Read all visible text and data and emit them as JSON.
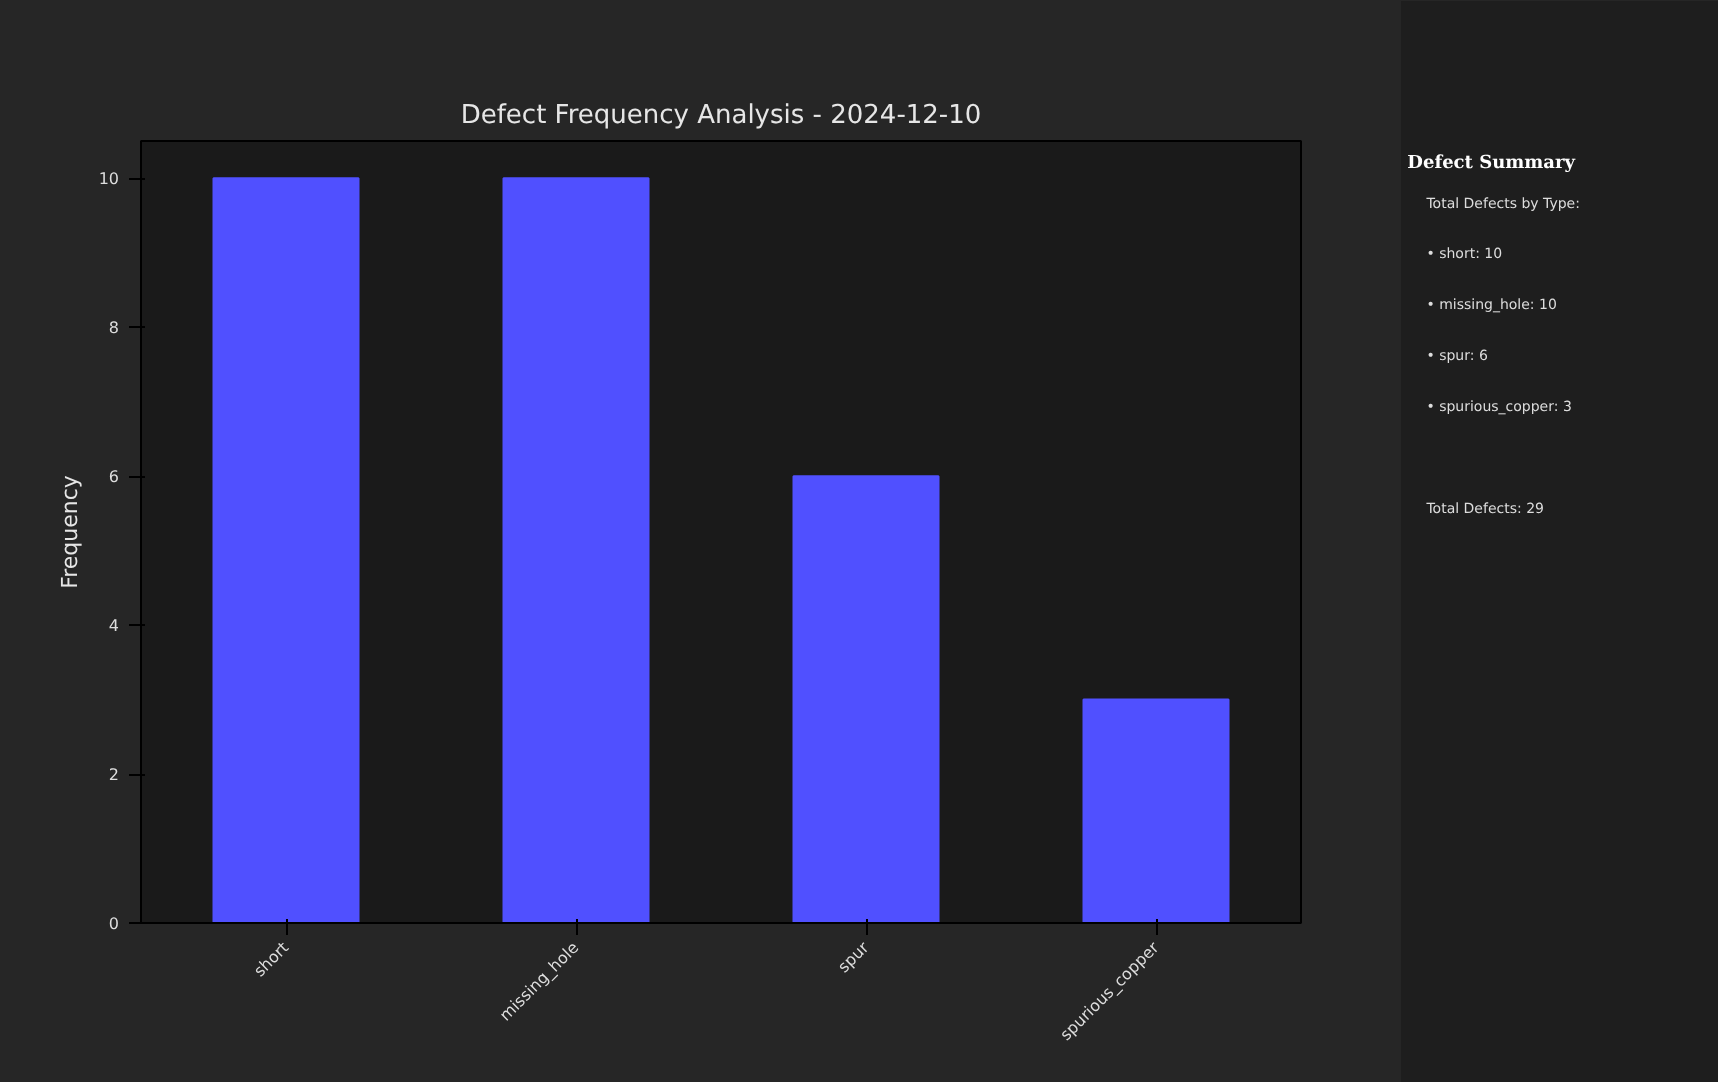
{
  "chart_data": [
    {
      "type": "bar",
      "title": "Defect Frequency Analysis - 2024-12-10",
      "ylabel": "Frequency",
      "categories": [
        "short",
        "missing_hole",
        "spur",
        "spurious_copper"
      ],
      "values": [
        10,
        10,
        6,
        3
      ],
      "color": "#5050ff",
      "ylim": [
        0,
        10.5
      ],
      "yticks": [
        0,
        2,
        4,
        6,
        8,
        10
      ]
    },
    {
      "type": "other",
      "title": "Defect Summary",
      "annotations": [
        "Total Defects by Type:",
        "• short: 10",
        "• missing_hole: 10",
        "• spur: 6",
        "• spurious_copper: 3",
        "Total Defects: 29"
      ]
    }
  ]
}
